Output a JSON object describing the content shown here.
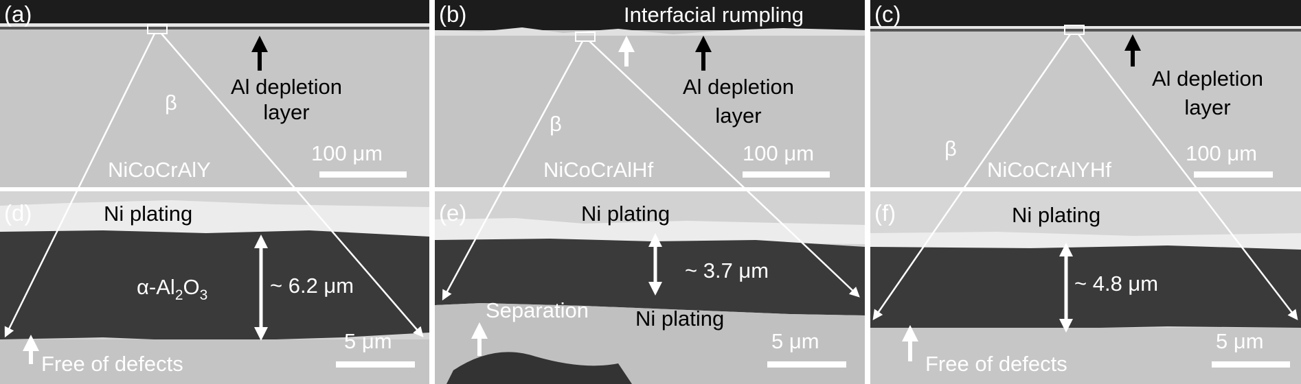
{
  "panels": [
    {
      "label": "(a)",
      "layer_label": [
        "Al depletion",
        "layer"
      ],
      "phase": "β",
      "alloy": "NiCoCrAlY",
      "scale": "100 μm"
    },
    {
      "label": "(b)",
      "annotation": "Interfacial rumpling",
      "layer_label": [
        "Al depletion",
        "layer"
      ],
      "phase": "β",
      "alloy": "NiCoCrAlHf",
      "scale": "100 μm"
    },
    {
      "label": "(c)",
      "layer_label": [
        "Al depletion",
        "layer"
      ],
      "phase": "β",
      "alloy": "NiCoCrAlYHf",
      "scale": "100 μm"
    },
    {
      "label": "(d)",
      "plating": "Ni plating",
      "oxide": [
        "α-Al",
        "2",
        "O",
        "3"
      ],
      "thickness": "~ 6.2 μm",
      "note": "Free of defects",
      "scale": "5 μm"
    },
    {
      "label": "(e)",
      "plating": "Ni plating",
      "thickness": "~ 3.7 μm",
      "separation": "Separation",
      "plating_lower": "Ni plating",
      "scale": "5 μm"
    },
    {
      "label": "(f)",
      "plating": "Ni plating",
      "thickness": "~ 4.8 μm",
      "note": "Free of defects",
      "scale": "5 μm"
    }
  ]
}
